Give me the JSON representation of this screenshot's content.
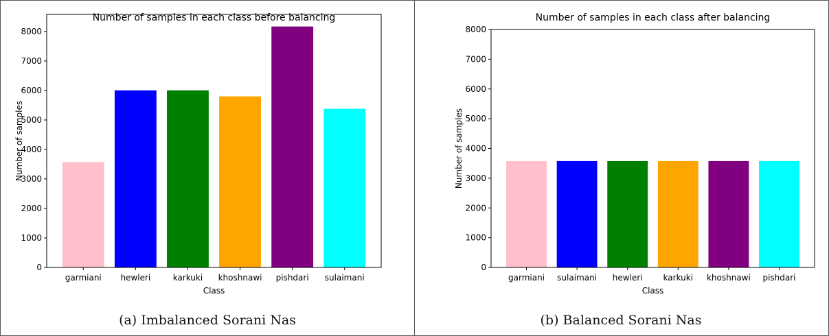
{
  "chart_data": [
    {
      "type": "bar",
      "title": "Number of samples in each class before balancing",
      "xlabel": "Class",
      "ylabel": "Number of samples",
      "categories": [
        "garmiani",
        "hewleri",
        "karkuki",
        "khoshnawi",
        "pishdari",
        "sulaimani"
      ],
      "values": [
        3575,
        6005,
        6005,
        5800,
        8170,
        5380
      ],
      "colors": [
        "#ffc0cb",
        "#0000ff",
        "#008000",
        "#ffa500",
        "#800080",
        "#00ffff"
      ],
      "ylim": [
        0,
        8580
      ],
      "yticks": [
        0,
        1000,
        2000,
        3000,
        4000,
        5000,
        6000,
        7000,
        8000
      ],
      "grid": false
    },
    {
      "type": "bar",
      "title": "Number of samples in each class after balancing",
      "xlabel": "Class",
      "ylabel": "Number of samples",
      "categories": [
        "garmiani",
        "sulaimani",
        "hewleri",
        "karkuki",
        "khoshnawi",
        "pishdari"
      ],
      "values": [
        3575,
        3575,
        3575,
        3575,
        3575,
        3575
      ],
      "colors": [
        "#ffc0cb",
        "#0000ff",
        "#008000",
        "#ffa500",
        "#800080",
        "#00ffff"
      ],
      "ylim": [
        0,
        8000
      ],
      "yticks": [
        0,
        1000,
        2000,
        3000,
        4000,
        5000,
        6000,
        7000,
        8000
      ],
      "grid": false
    }
  ],
  "captions": [
    "(a) Imbalanced Sorani Nas",
    "(b) Balanced Sorani Nas"
  ]
}
